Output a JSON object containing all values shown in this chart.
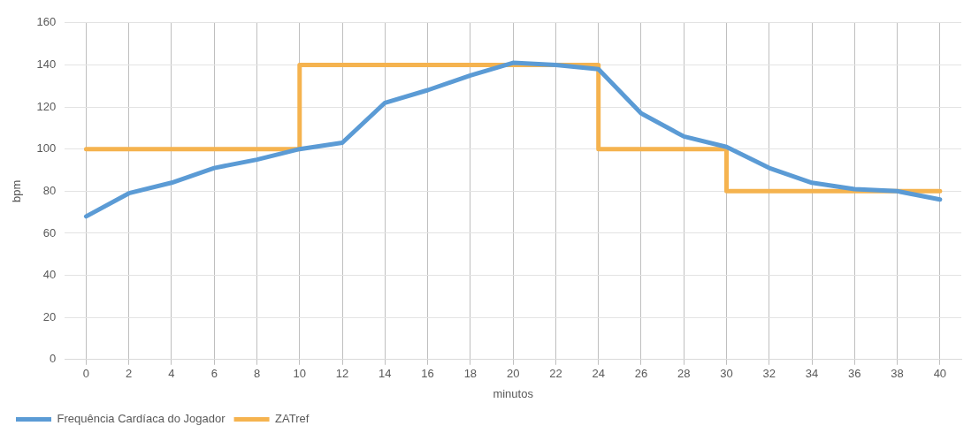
{
  "chart_data": {
    "type": "line",
    "xlabel": "minutos",
    "ylabel": "bpm",
    "xlim": [
      -1,
      41
    ],
    "xticks": [
      0,
      2,
      4,
      6,
      8,
      10,
      12,
      14,
      16,
      18,
      20,
      22,
      24,
      26,
      28,
      30,
      32,
      34,
      36,
      38,
      40
    ],
    "ylim": [
      0,
      160
    ],
    "yticks": [
      0,
      20,
      40,
      60,
      80,
      100,
      120,
      140,
      160
    ],
    "grid": true,
    "legend": "bottom left",
    "marker": "none",
    "line_style": "solid",
    "series": [
      {
        "name": "Frequência Cardíaca do Jogador",
        "color": "#5b9bd5",
        "x": [
          0,
          2,
          4,
          6,
          8,
          10,
          12,
          14,
          16,
          18,
          20,
          22,
          24,
          26,
          28,
          30,
          32,
          34,
          36,
          38,
          40
        ],
        "values": [
          68,
          79,
          84,
          91,
          95,
          100,
          103,
          122,
          128,
          135,
          141,
          140,
          138,
          117,
          106,
          101,
          91,
          84,
          81,
          80,
          76
        ]
      },
      {
        "name": "ZATref",
        "type": "step",
        "color": "#f5b34f",
        "x": [
          0,
          10,
          24,
          30,
          40
        ],
        "values": [
          100,
          140,
          100,
          80,
          80
        ]
      }
    ]
  }
}
